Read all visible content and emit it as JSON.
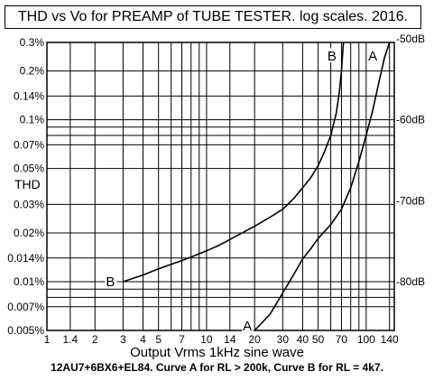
{
  "chart_data": {
    "type": "line",
    "title": "THD vs  Vo for PREAMP of TUBE TESTER. log scales. 2016.",
    "xlabel": "Output Vrms 1kHz sine wave",
    "ylabel": "THD",
    "caption": "12AU7+6BX6+EL84. Curve A for RL > 200k, Curve B for RL = 4k7.",
    "x_scale": "log",
    "y_scale": "log",
    "xlim": [
      1,
      150
    ],
    "ylim": [
      0.005,
      0.3
    ],
    "grid": true,
    "x_ticks": [
      1,
      1.4,
      2,
      3,
      4,
      5,
      7,
      10,
      14,
      20,
      30,
      40,
      50,
      70,
      100,
      140
    ],
    "x_tick_labels": [
      "1",
      "1.4",
      "2",
      "3",
      "4",
      "5",
      "7",
      "10",
      "14",
      "20",
      "30",
      "40",
      "50",
      "70",
      "100",
      "140"
    ],
    "x_extra_gridlines": [
      6,
      8,
      9,
      60,
      80,
      90
    ],
    "y_ticks": [
      0.005,
      0.007,
      0.01,
      0.014,
      0.02,
      0.03,
      0.05,
      0.07,
      0.1,
      0.14,
      0.2,
      0.3
    ],
    "y_tick_labels": [
      "0.005%",
      "0.007%",
      "0.01%",
      "0.014%",
      "0.02%",
      "0.03%",
      "0.05%",
      "0.07%",
      "0.1%",
      "0.14%",
      "0.2%",
      "0.3%"
    ],
    "y_extra_gridlines": [
      0.008,
      0.009,
      0.08,
      0.09
    ],
    "y2_ticks": [
      0.01,
      0.0316,
      0.1,
      0.316
    ],
    "y2_tick_labels": [
      "-80dB",
      "-70dB",
      "-60dB",
      "-50dB"
    ],
    "series": [
      {
        "name": "A",
        "x": [
          20,
          25,
          30,
          35,
          40,
          45,
          50,
          60,
          70,
          80,
          90,
          100,
          110,
          120,
          130,
          140
        ],
        "y": [
          0.005,
          0.0063,
          0.0085,
          0.011,
          0.0138,
          0.016,
          0.0185,
          0.0225,
          0.028,
          0.038,
          0.055,
          0.08,
          0.115,
          0.17,
          0.24,
          0.3
        ]
      },
      {
        "name": "B",
        "x": [
          3,
          4,
          5,
          6,
          7,
          8,
          10,
          12,
          14,
          17,
          20,
          25,
          30,
          35,
          40,
          45,
          50,
          55,
          60,
          65,
          68,
          70,
          72
        ],
        "y": [
          0.01,
          0.011,
          0.012,
          0.0128,
          0.0135,
          0.0142,
          0.0155,
          0.0168,
          0.0182,
          0.0202,
          0.022,
          0.025,
          0.028,
          0.0325,
          0.038,
          0.044,
          0.052,
          0.064,
          0.08,
          0.11,
          0.15,
          0.2,
          0.3
        ]
      }
    ],
    "annotations": [
      {
        "text": "A",
        "x": 110,
        "y": 0.25
      },
      {
        "text": "B",
        "x": 61,
        "y": 0.25
      },
      {
        "text": "A",
        "x": 18,
        "y": 0.0054
      },
      {
        "text": "B",
        "x": 2.5,
        "y": 0.0101
      }
    ],
    "colors": {
      "line": "#000000",
      "grid": "#000000",
      "background": "#ffffff"
    }
  }
}
